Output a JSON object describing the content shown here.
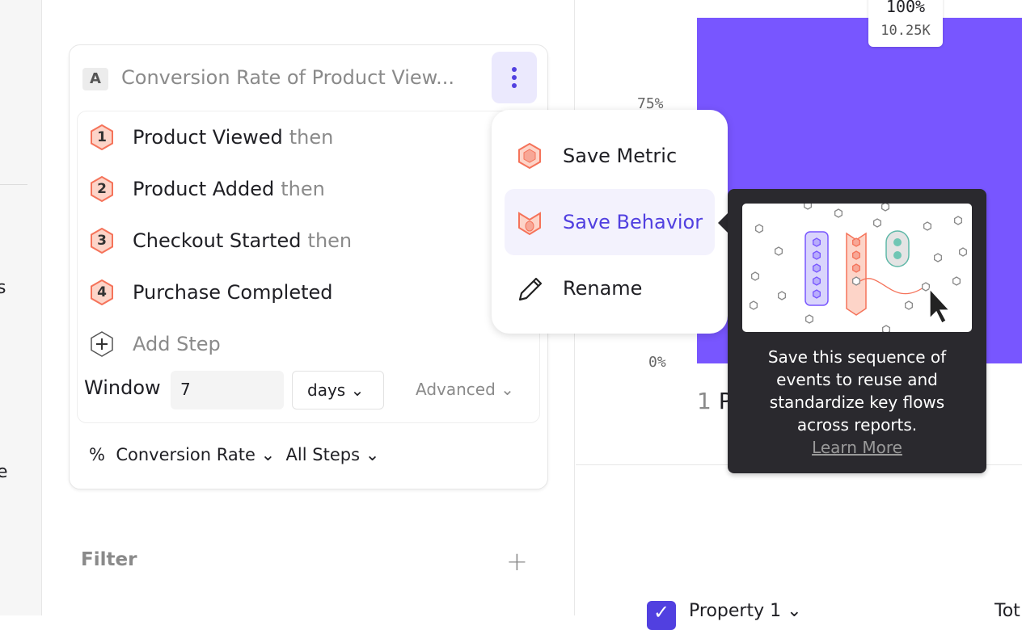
{
  "sidebar": {
    "partial_1": "s",
    "partial_2": "e"
  },
  "metric": {
    "letter": "A",
    "title": "Conversion Rate of Product View...",
    "steps": [
      {
        "num": "1",
        "name": "Product Viewed",
        "suffix": "then"
      },
      {
        "num": "2",
        "name": "Product Added",
        "suffix": "then"
      },
      {
        "num": "3",
        "name": "Checkout Started",
        "suffix": "then"
      },
      {
        "num": "4",
        "name": "Purchase Completed",
        "suffix": ""
      }
    ],
    "add_step": "Add Step",
    "window_label": "Window",
    "window_value": "7",
    "window_unit": "days",
    "advanced": "Advanced",
    "measure_symbol": "%",
    "measure": "Conversion Rate",
    "steps_scope": "All Steps"
  },
  "filter": {
    "label": "Filter"
  },
  "menu": {
    "items": [
      {
        "label": "Save Metric",
        "icon": "metric-hex-icon"
      },
      {
        "label": "Save Behavior",
        "icon": "behavior-icon"
      },
      {
        "label": "Rename",
        "icon": "pencil-icon"
      }
    ]
  },
  "tooltip": {
    "text": "Save this sequence of events to reuse and standardize key flows across reports.",
    "link": "Learn More"
  },
  "chart": {
    "bar_percent": "100%",
    "bar_count": "10.25K",
    "ticks": [
      "75%",
      "0%"
    ],
    "category_num": "1",
    "category_partial": "P",
    "accent": "#7856ff"
  },
  "table": {
    "column_1": "Property 1",
    "column_2_partial": "Tot"
  }
}
